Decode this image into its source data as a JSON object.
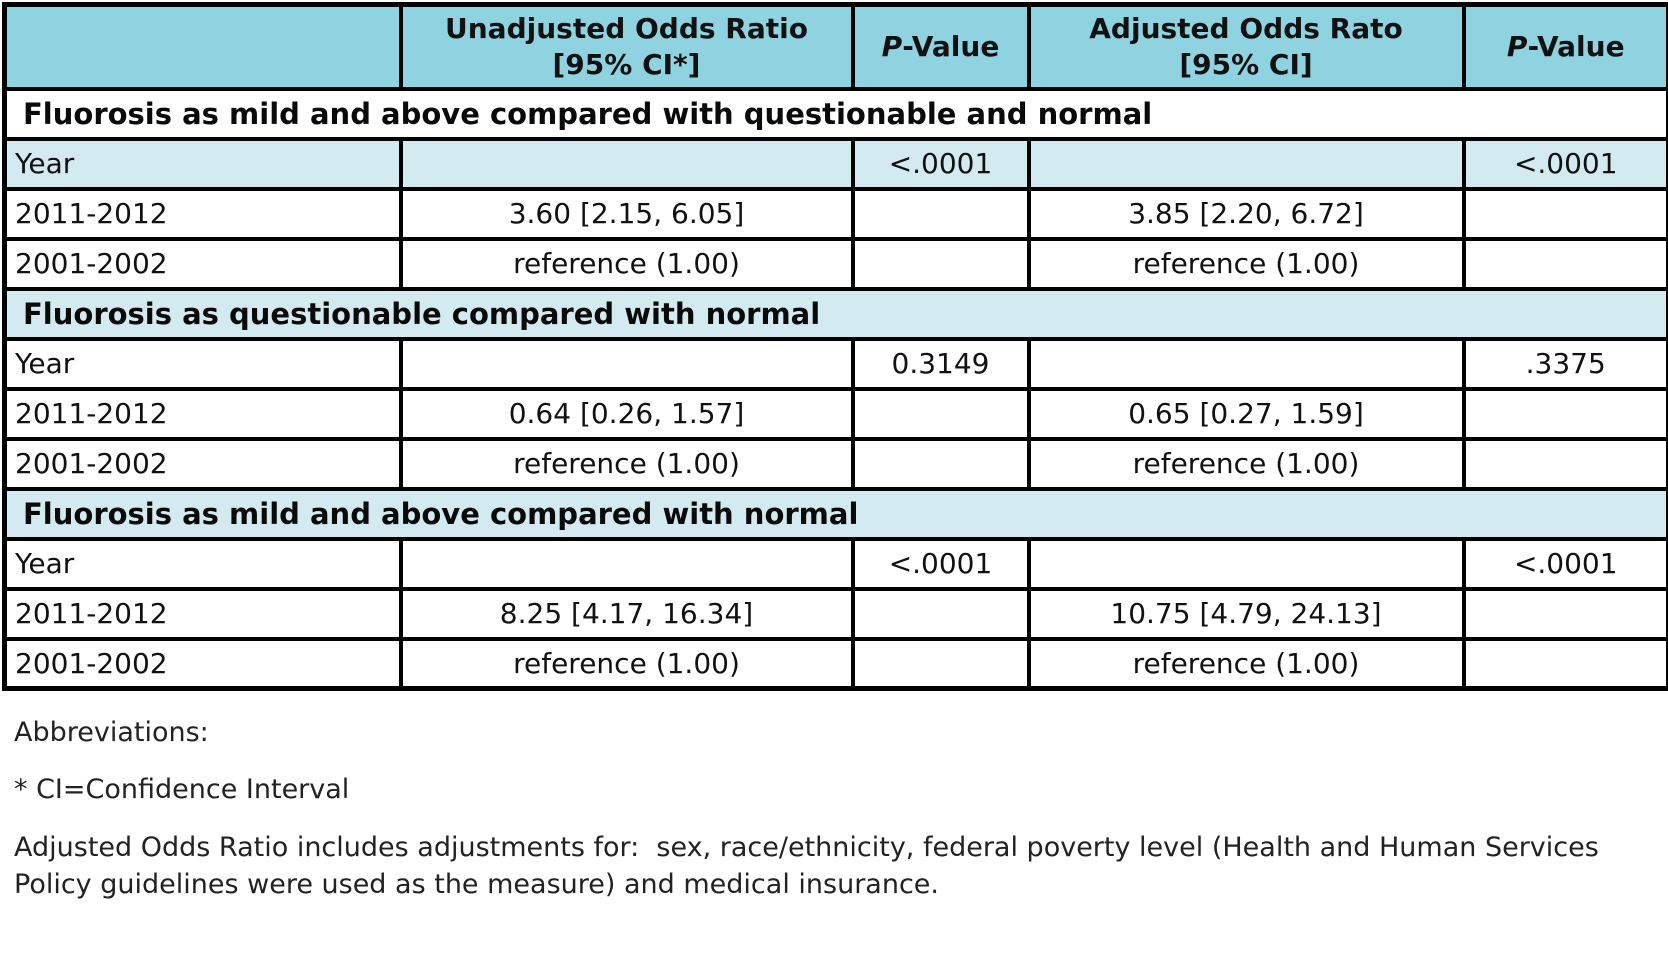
{
  "colors": {
    "header_bg": "#8FD3E1",
    "band_bg": "#D3EAF1",
    "border": "#000000",
    "text": "#111111"
  },
  "table": {
    "headers": {
      "row_label": "",
      "unadjusted_line1": "Unadjusted Odds Ratio",
      "unadjusted_line2": "[95% CI*]",
      "p1_italic": "P",
      "p1_rest": "-Value",
      "adjusted_line1": "Adjusted Odds Rato",
      "adjusted_line2": "[95% CI]",
      "p2_italic": "P",
      "p2_rest": "-Value"
    },
    "sections": [
      {
        "title": "Fluorosis as mild and above compared with questionable and normal",
        "year": {
          "label": "Year",
          "p_unadjusted": "<.0001",
          "p_adjusted": "<.0001"
        },
        "rows": [
          {
            "label": "2011-2012",
            "unadjusted": "3.60 [2.15, 6.05]",
            "adjusted": "3.85 [2.20, 6.72]"
          },
          {
            "label": "2001-2002",
            "unadjusted": "reference (1.00)",
            "adjusted": "reference (1.00)"
          }
        ]
      },
      {
        "title": "Fluorosis as questionable compared with normal",
        "year": {
          "label": "Year",
          "p_unadjusted": "0.3149",
          "p_adjusted": ".3375"
        },
        "rows": [
          {
            "label": "2011-2012",
            "unadjusted": "0.64 [0.26, 1.57]",
            "adjusted": "0.65 [0.27, 1.59]"
          },
          {
            "label": "2001-2002",
            "unadjusted": "reference (1.00)",
            "adjusted": "reference (1.00)"
          }
        ]
      },
      {
        "title": "Fluorosis as mild and above compared with normal",
        "year": {
          "label": "Year",
          "p_unadjusted": "<.0001",
          "p_adjusted": "<.0001"
        },
        "rows": [
          {
            "label": "2011-2012",
            "unadjusted": "8.25 [4.17, 16.34]",
            "adjusted": "10.75 [4.79, 24.13]"
          },
          {
            "label": "2001-2002",
            "unadjusted": "reference (1.00)",
            "adjusted": "reference (1.00)"
          }
        ]
      }
    ]
  },
  "footnotes": {
    "abbreviations_label": "Abbreviations:",
    "ci_note": "* CI=Confidence Interval",
    "adjustment_note": "Adjusted Odds Ratio includes adjustments for:  sex, race/ethnicity, federal poverty level (Health and Human Services Policy guidelines were used as the measure) and medical insurance."
  }
}
